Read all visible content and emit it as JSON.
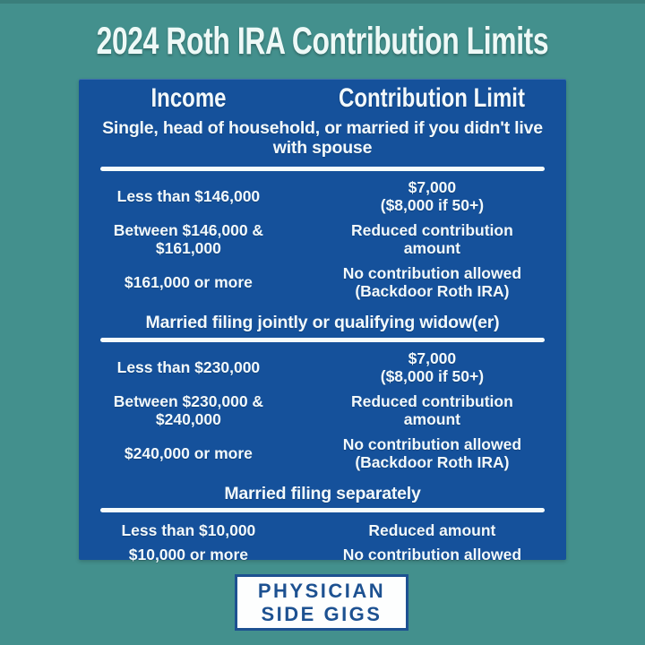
{
  "title": "2024 Roth IRA Contribution Limits",
  "colors": {
    "background_teal": "#43908d",
    "card_blue": "#15519b",
    "text_light": "#f2f9fb",
    "logo_blue": "#1d5191"
  },
  "table": {
    "column_headers": [
      "Income",
      "Contribution Limit"
    ],
    "sections": [
      {
        "heading": "Single, head of household, or married if you didn't live\nwith spouse",
        "rows": [
          {
            "income": "Less than $146,000",
            "limit": "$7,000\n($8,000 if 50+)"
          },
          {
            "income": "Between $146,000 &\n$161,000",
            "limit": "Reduced contribution\namount"
          },
          {
            "income": "$161,000 or more",
            "limit": "No contribution allowed\n(Backdoor Roth IRA)"
          }
        ]
      },
      {
        "heading": "Married filing jointly or qualifying widow(er)",
        "rows": [
          {
            "income": "Less than $230,000",
            "limit": "$7,000\n($8,000 if 50+)"
          },
          {
            "income": "Between $230,000 &\n$240,000",
            "limit": "Reduced contribution\namount"
          },
          {
            "income": "$240,000 or more",
            "limit": "No contribution allowed\n(Backdoor Roth IRA)"
          }
        ]
      },
      {
        "heading": "Married filing separately",
        "rows": [
          {
            "income": "Less than $10,000",
            "limit": "Reduced amount"
          },
          {
            "income": "$10,000 or more",
            "limit": "No contribution allowed"
          }
        ]
      }
    ]
  },
  "footer": {
    "logo_line1": "PHYSICIAN",
    "logo_line2": "SIDE GIGS"
  }
}
